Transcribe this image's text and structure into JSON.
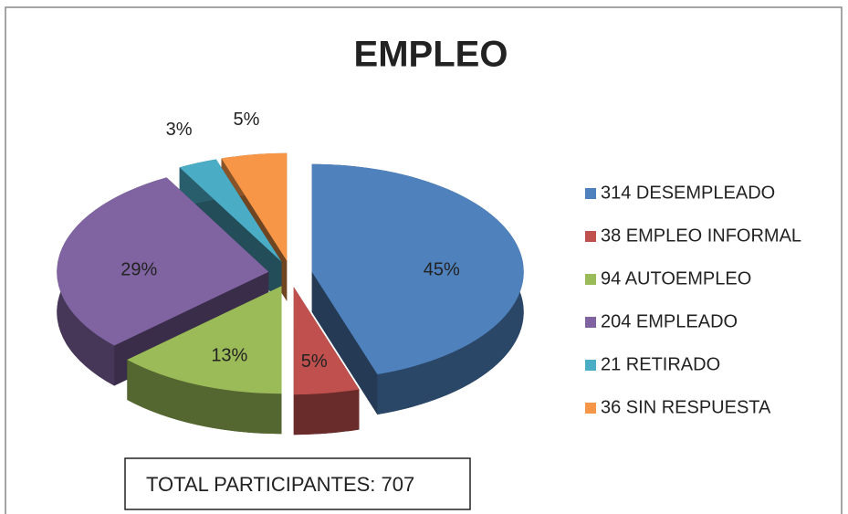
{
  "chart_data": {
    "type": "pie3d",
    "title": "EMPLEO",
    "categories": [
      "314 DESEMPLEADO",
      "38 EMPLEO INFORMAL",
      "94 AUTOEMPLEO",
      "204 EMPLEADO",
      "21 RETIRADO",
      "36 SIN RESPUESTA"
    ],
    "values": [
      45,
      5,
      13,
      29,
      3,
      5
    ],
    "value_labels": [
      "45%",
      "5%",
      "13%",
      "29%",
      "3%",
      "5%"
    ],
    "colors": [
      "#4f81bd",
      "#c0504d",
      "#9bbb59",
      "#8064a2",
      "#4bacc6",
      "#f79646"
    ],
    "legend": "right",
    "annotation": "TOTAL PARTICIPANTES: 707"
  }
}
